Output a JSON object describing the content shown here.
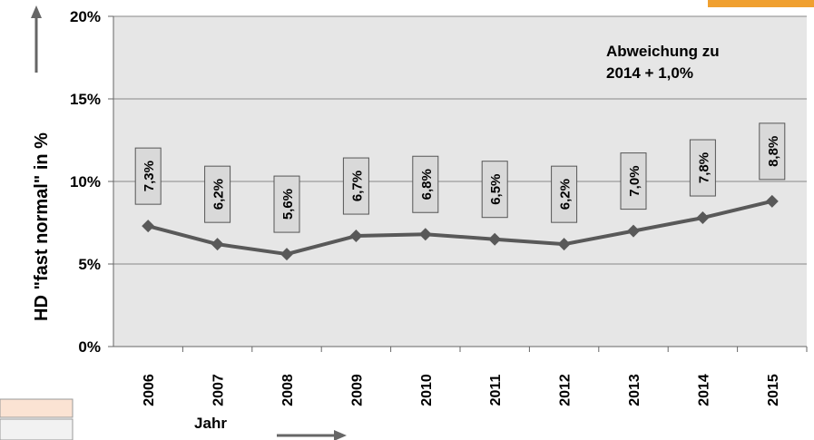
{
  "chart_data": {
    "type": "line",
    "ylabel": "HD  \"fast normal\" in %",
    "xlabel": "Jahr",
    "annotation": [
      "Abweichung zu",
      "2014  + 1,0%"
    ],
    "categories": [
      "2006",
      "2007",
      "2008",
      "2009",
      "2010",
      "2011",
      "2012",
      "2013",
      "2014",
      "2015"
    ],
    "values": [
      7.3,
      6.2,
      5.6,
      6.7,
      6.8,
      6.5,
      6.2,
      7.0,
      7.8,
      8.8
    ],
    "value_labels": [
      "7,3%",
      "6,2%",
      "5,6%",
      "6,7%",
      "6,8%",
      "6,5%",
      "6,2%",
      "7,0%",
      "7,8%",
      "8,8%"
    ],
    "color": "#595959",
    "ylim": [
      0,
      20
    ],
    "yticks": [
      {
        "value": 0,
        "label": "0%"
      },
      {
        "value": 5,
        "label": "5%"
      },
      {
        "value": 10,
        "label": "10%"
      },
      {
        "value": 15,
        "label": "15%"
      },
      {
        "value": 20,
        "label": "20%"
      }
    ],
    "grid": true
  }
}
